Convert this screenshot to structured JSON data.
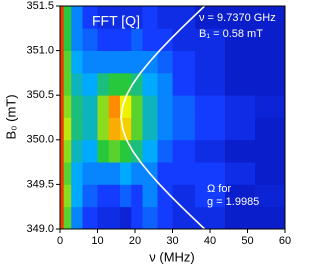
{
  "chart_data": {
    "type": "heatmap",
    "x_label": "ν (MHz)",
    "y_label": "B₀ (mT)",
    "annotations": [
      "FFT [Q]",
      "ν = 9.7370 GHz",
      "B₁ = 0.58 mT",
      "Ω for",
      "g = 1.9985"
    ],
    "xlim": [
      0,
      60
    ],
    "xticks": [
      0,
      10,
      20,
      30,
      40,
      50,
      60
    ],
    "ylim": [
      349,
      351.5
    ],
    "yticks": [
      {
        "value": 349,
        "label": "349.0"
      },
      349.5,
      {
        "value": 350,
        "label": "350.0"
      },
      350.5,
      {
        "value": 351,
        "label": "351.0"
      },
      351.5
    ],
    "x_edges": [
      0,
      1,
      3,
      6,
      10,
      13,
      16,
      19,
      22,
      26,
      30,
      36,
      44,
      52,
      60
    ],
    "y_edges": [
      349,
      349.25,
      349.5,
      349.75,
      350,
      350.25,
      350.5,
      350.75,
      351,
      351.25,
      351.5
    ],
    "z": [
      [
        0.95,
        0.55,
        0.3,
        0.2,
        0.15,
        0.15,
        0.12,
        0.2,
        0.25,
        0.2,
        0.15,
        0.15,
        0.1,
        0.1
      ],
      [
        0.95,
        0.6,
        0.35,
        0.25,
        0.2,
        0.2,
        0.25,
        0.2,
        0.3,
        0.2,
        0.15,
        0.2,
        0.1,
        0.12
      ],
      [
        0.95,
        0.55,
        0.35,
        0.3,
        0.3,
        0.3,
        0.35,
        0.3,
        0.3,
        0.2,
        0.2,
        0.2,
        0.15,
        0.1
      ],
      [
        0.95,
        0.6,
        0.4,
        0.35,
        0.5,
        0.55,
        0.5,
        0.45,
        0.35,
        0.25,
        0.2,
        0.15,
        0.1,
        0.1
      ],
      [
        0.95,
        0.65,
        0.45,
        0.4,
        0.6,
        0.8,
        0.75,
        0.55,
        0.4,
        0.3,
        0.25,
        0.2,
        0.15,
        0.1
      ],
      [
        0.95,
        0.6,
        0.45,
        0.4,
        0.6,
        0.85,
        0.7,
        0.55,
        0.4,
        0.3,
        0.25,
        0.2,
        0.15,
        0.12
      ],
      [
        0.95,
        0.55,
        0.4,
        0.35,
        0.45,
        0.5,
        0.5,
        0.45,
        0.35,
        0.3,
        0.2,
        0.15,
        0.1,
        0.1
      ],
      [
        0.95,
        0.55,
        0.35,
        0.3,
        0.3,
        0.3,
        0.3,
        0.3,
        0.3,
        0.25,
        0.2,
        0.15,
        0.1,
        0.1
      ],
      [
        0.95,
        0.5,
        0.3,
        0.25,
        0.2,
        0.2,
        0.2,
        0.25,
        0.2,
        0.2,
        0.15,
        0.15,
        0.1,
        0.1
      ],
      [
        0.95,
        0.5,
        0.3,
        0.2,
        0.15,
        0.15,
        0.15,
        0.15,
        0.2,
        0.15,
        0.15,
        0.1,
        0.1,
        0.1
      ]
    ],
    "curve": {
      "color": "#ffffff",
      "x": [
        38.57,
        35.44,
        32.37,
        29.4,
        26.56,
        23.9,
        21.48,
        19.38,
        17.74,
        16.7,
        16.3,
        16.7,
        17.74,
        19.38,
        21.48,
        23.9,
        26.56,
        29.4,
        32.37,
        35.44,
        38.57
      ],
      "y": [
        349,
        349.125,
        349.25,
        349.375,
        349.5,
        349.625,
        349.75,
        349.875,
        350,
        350.125,
        350.25,
        350.375,
        350.5,
        350.625,
        350.75,
        350.875,
        351,
        351.125,
        351.25,
        351.375,
        351.5
      ]
    }
  }
}
